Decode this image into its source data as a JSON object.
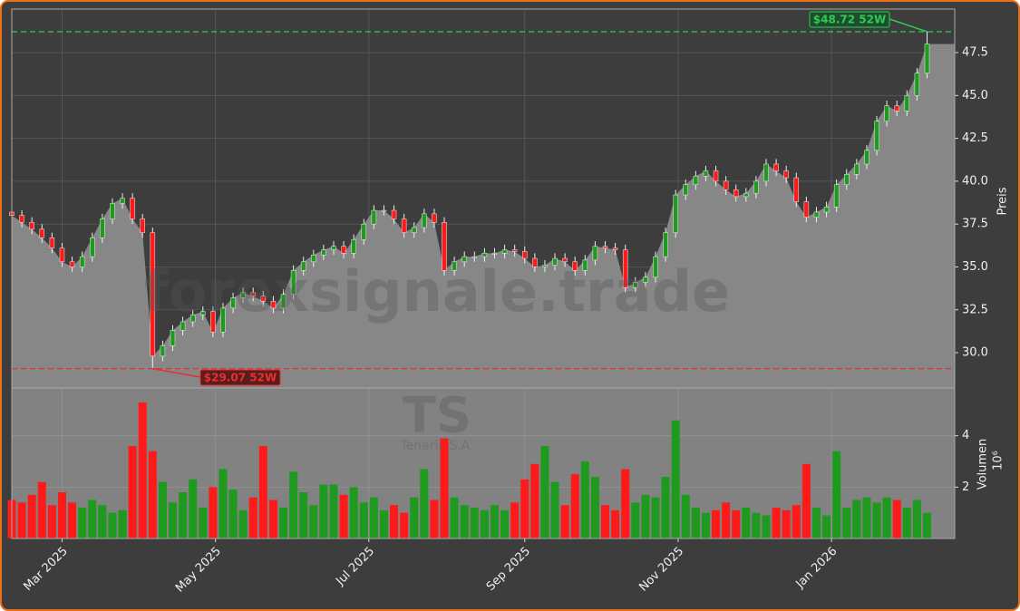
{
  "chart_data": {
    "type": "candlestick",
    "watermark": "forexsignale.trade",
    "symbol": "TS",
    "company": "Tenaris S.A.",
    "y_label": "Preis",
    "volume_label": "Volumen",
    "volume_scale": "10⁶",
    "x": [
      0,
      4,
      8,
      12,
      16,
      20,
      24,
      28,
      32,
      36,
      40,
      44,
      48,
      52,
      56,
      60,
      64,
      68,
      72,
      76,
      80,
      84,
      88,
      92,
      96,
      100,
      104,
      108,
      112,
      116,
      120,
      124,
      128,
      132,
      136,
      140,
      144,
      148,
      152,
      156,
      160,
      164,
      168,
      172,
      176,
      180,
      184,
      188,
      192,
      196,
      200,
      204,
      208,
      212,
      216,
      220,
      224,
      228,
      232,
      236,
      240,
      244,
      248,
      252,
      256,
      260,
      264,
      268,
      272,
      276,
      280,
      284,
      288,
      292,
      296,
      300,
      304,
      308,
      312,
      316,
      320,
      324,
      328,
      332,
      336,
      340,
      344,
      348,
      352,
      356,
      360,
      364
    ],
    "open": [
      38.2,
      38.0,
      37.6,
      37.2,
      36.7,
      36.1,
      35.3,
      35.0,
      35.6,
      36.7,
      37.8,
      38.7,
      39.0,
      37.8,
      37.0,
      29.8,
      30.4,
      31.3,
      31.8,
      32.2,
      32.4,
      31.2,
      32.6,
      33.2,
      33.5,
      33.3,
      33.0,
      32.6,
      33.4,
      34.8,
      35.3,
      35.7,
      36.0,
      36.2,
      35.8,
      36.6,
      37.5,
      38.3,
      38.3,
      37.8,
      37.0,
      37.3,
      38.1,
      37.6,
      34.8,
      35.3,
      35.6,
      35.6,
      35.8,
      35.8,
      36.0,
      35.9,
      35.5,
      35.0,
      35.1,
      35.5,
      35.3,
      34.8,
      35.4,
      36.2,
      36.1,
      36.0,
      33.8,
      34.1,
      34.4,
      35.6,
      37.0,
      39.2,
      39.8,
      40.3,
      40.6,
      40.0,
      39.5,
      39.1,
      39.3,
      40.0,
      41.0,
      40.6,
      40.2,
      38.8,
      37.9,
      38.2,
      38.5,
      39.8,
      40.4,
      41.0,
      41.8,
      43.5,
      44.4,
      44.1,
      45.0,
      46.3
    ],
    "high": [
      38.5,
      38.3,
      37.9,
      37.5,
      37.0,
      36.4,
      35.6,
      35.9,
      37.0,
      38.1,
      39.0,
      39.3,
      39.3,
      38.1,
      37.3,
      30.7,
      31.6,
      32.1,
      32.5,
      32.7,
      32.7,
      32.9,
      33.5,
      33.8,
      33.8,
      33.6,
      33.3,
      33.7,
      35.1,
      35.6,
      36.0,
      36.3,
      36.5,
      36.5,
      36.9,
      37.8,
      38.6,
      38.6,
      38.6,
      38.1,
      37.6,
      38.4,
      38.4,
      37.9,
      35.6,
      35.9,
      35.9,
      36.1,
      36.1,
      36.3,
      36.3,
      36.2,
      35.8,
      35.4,
      35.8,
      35.8,
      35.6,
      35.7,
      36.5,
      36.5,
      36.4,
      36.3,
      34.4,
      34.7,
      35.9,
      37.3,
      39.5,
      40.1,
      40.6,
      40.9,
      40.9,
      40.3,
      39.8,
      39.6,
      40.3,
      41.3,
      41.3,
      40.9,
      40.5,
      39.1,
      38.5,
      38.8,
      40.1,
      40.7,
      41.3,
      42.1,
      43.8,
      44.7,
      44.7,
      45.3,
      46.6,
      48.72
    ],
    "low": [
      37.7,
      37.3,
      36.9,
      36.4,
      35.8,
      35.0,
      34.7,
      34.7,
      35.3,
      36.4,
      37.5,
      38.4,
      37.5,
      36.7,
      29.07,
      29.5,
      30.1,
      31.0,
      31.5,
      31.9,
      30.9,
      30.9,
      32.3,
      32.9,
      33.0,
      32.7,
      32.3,
      32.3,
      33.1,
      34.5,
      35.0,
      35.4,
      35.7,
      35.5,
      35.5,
      36.3,
      37.2,
      38.0,
      37.5,
      36.7,
      36.7,
      37.0,
      37.3,
      34.5,
      34.5,
      35.0,
      35.3,
      35.3,
      35.5,
      35.5,
      35.6,
      35.2,
      34.7,
      34.7,
      34.8,
      35.0,
      34.5,
      34.5,
      35.1,
      35.8,
      35.7,
      33.5,
      33.5,
      33.8,
      34.1,
      35.3,
      36.7,
      38.9,
      39.5,
      40.0,
      39.7,
      39.2,
      38.8,
      38.8,
      39.0,
      39.7,
      40.3,
      39.9,
      38.5,
      37.6,
      37.6,
      37.9,
      38.2,
      39.5,
      40.1,
      40.7,
      41.5,
      43.2,
      43.8,
      43.8,
      44.7,
      46.0
    ],
    "close": [
      38.0,
      37.6,
      37.2,
      36.7,
      36.1,
      35.3,
      35.0,
      35.6,
      36.7,
      37.8,
      38.7,
      39.0,
      37.8,
      37.0,
      29.8,
      30.4,
      31.3,
      31.8,
      32.2,
      32.4,
      31.2,
      32.6,
      33.2,
      33.5,
      33.3,
      33.0,
      32.6,
      33.4,
      34.8,
      35.3,
      35.7,
      36.0,
      36.2,
      35.8,
      36.6,
      37.5,
      38.3,
      38.3,
      37.8,
      37.0,
      37.3,
      38.1,
      37.6,
      34.8,
      35.3,
      35.6,
      35.6,
      35.8,
      35.8,
      36.0,
      35.9,
      35.5,
      35.0,
      35.1,
      35.5,
      35.3,
      34.8,
      35.4,
      36.2,
      36.1,
      36.0,
      33.8,
      34.1,
      34.4,
      35.6,
      37.0,
      39.2,
      39.8,
      40.3,
      40.6,
      40.0,
      39.5,
      39.1,
      39.3,
      40.0,
      41.0,
      40.6,
      40.2,
      38.8,
      37.9,
      38.2,
      38.5,
      39.8,
      40.4,
      41.0,
      41.8,
      43.5,
      44.4,
      44.1,
      45.0,
      46.3,
      48.0
    ],
    "volume": [
      1.5,
      1.4,
      1.7,
      2.2,
      1.3,
      1.8,
      1.4,
      1.2,
      1.5,
      1.3,
      1.0,
      1.1,
      3.6,
      5.3,
      3.4,
      2.2,
      1.4,
      1.8,
      2.3,
      1.2,
      2.0,
      2.7,
      1.9,
      1.1,
      1.6,
      3.6,
      1.5,
      1.2,
      2.6,
      1.8,
      1.3,
      2.1,
      2.1,
      1.7,
      2.0,
      1.4,
      1.6,
      1.1,
      1.3,
      1.0,
      1.6,
      2.7,
      1.5,
      3.9,
      1.6,
      1.3,
      1.2,
      1.1,
      1.3,
      1.1,
      1.4,
      2.3,
      2.9,
      3.6,
      2.2,
      1.3,
      2.5,
      3.0,
      2.4,
      1.3,
      1.1,
      2.7,
      1.4,
      1.7,
      1.6,
      2.4,
      4.6,
      1.7,
      1.2,
      1.0,
      1.1,
      1.4,
      1.1,
      1.2,
      1.0,
      0.9,
      1.2,
      1.1,
      1.3,
      2.9,
      1.2,
      0.9,
      3.4,
      1.2,
      1.5,
      1.6,
      1.4,
      1.6,
      1.5,
      1.2,
      1.5,
      1.0
    ],
    "up_color": "#1e9a1e",
    "down_color": "#ff1a1a",
    "xlim": [
      0,
      375
    ],
    "xticks": [
      {
        "value": 20,
        "label": "Mar 2025"
      },
      {
        "value": 81,
        "label": "May 2025"
      },
      {
        "value": 142,
        "label": "Jul 2025"
      },
      {
        "value": 204,
        "label": "Sep 2025"
      },
      {
        "value": 265,
        "label": "Nov 2025"
      },
      {
        "value": 326,
        "label": "Jan 2026"
      }
    ],
    "ylim": [
      27.94,
      50.04
    ],
    "yticks": [
      {
        "value": 30,
        "label": "30.0"
      },
      32.5,
      {
        "value": 35,
        "label": "35.0"
      },
      37.5,
      {
        "value": 40,
        "label": "40.0"
      },
      42.5,
      {
        "value": 45,
        "label": "45.0"
      },
      47.5
    ],
    "volume_ylim": [
      0,
      5.86
    ],
    "volume_yticks": [
      2,
      4
    ],
    "grid": true,
    "high_52w": {
      "value": 48.72,
      "label": "$48.72 52W",
      "color": "#2ecc55"
    },
    "low_52w": {
      "value": 29.07,
      "label": "$29.07 52W",
      "color": "#e83030"
    }
  }
}
